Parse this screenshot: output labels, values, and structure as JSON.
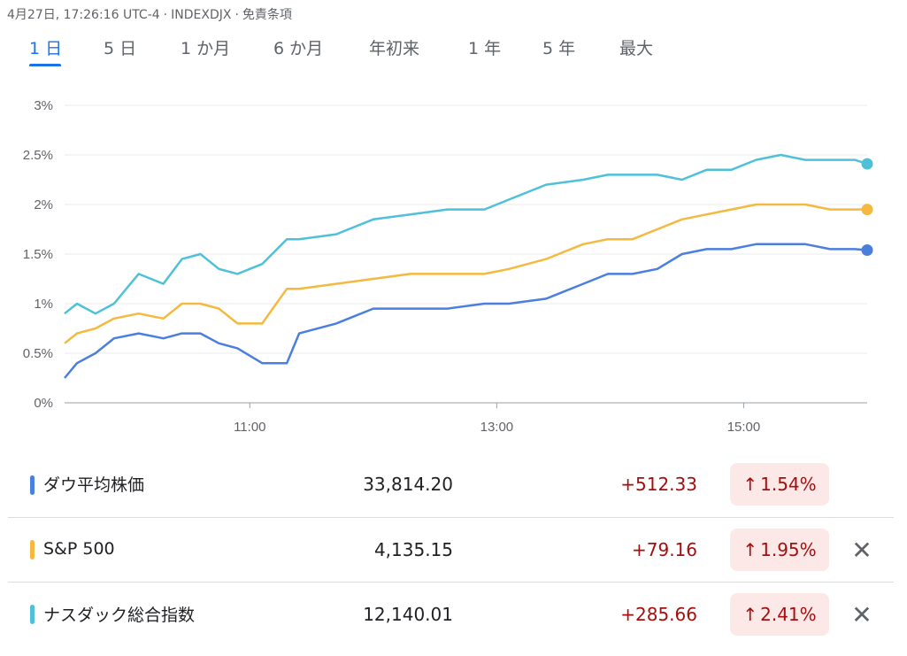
{
  "header": {
    "timestamp": "4月27日, 17:26:16 UTC-4",
    "separator": "·",
    "symbol": "INDEXDJX",
    "disclaimer": "免責条項"
  },
  "tabs": [
    {
      "label": "1 日",
      "active": true
    },
    {
      "label": "5 日",
      "active": false
    },
    {
      "label": "1 か月",
      "active": false
    },
    {
      "label": "6 か月",
      "active": false
    },
    {
      "label": "年初来",
      "active": false
    },
    {
      "label": "1 年",
      "active": false
    },
    {
      "label": "5 年",
      "active": false
    },
    {
      "label": "最大",
      "active": false
    }
  ],
  "chart_data": {
    "type": "line",
    "y_ticks": [
      "0%",
      "0.5%",
      "1%",
      "1.5%",
      "2%",
      "2.5%",
      "3%"
    ],
    "ylim": [
      0,
      3
    ],
    "x_ticks": [
      "11:00",
      "13:00",
      "15:00"
    ],
    "x_tick_hours": [
      11,
      13,
      15
    ],
    "xlim_hours": [
      9.5,
      16
    ],
    "grid": true,
    "series": [
      {
        "name": "ナスダック総合指数",
        "color": "#4ec1d9",
        "x": [
          9.5,
          9.6,
          9.75,
          9.9,
          10.1,
          10.3,
          10.45,
          10.6,
          10.75,
          10.9,
          11.1,
          11.3,
          11.4,
          11.7,
          12.0,
          12.3,
          12.6,
          12.9,
          13.1,
          13.4,
          13.7,
          13.9,
          14.1,
          14.3,
          14.5,
          14.7,
          14.9,
          15.1,
          15.3,
          15.5,
          15.7,
          15.9,
          16.0
        ],
        "y": [
          0.9,
          1.0,
          0.9,
          1.0,
          1.3,
          1.2,
          1.45,
          1.5,
          1.35,
          1.3,
          1.4,
          1.65,
          1.65,
          1.7,
          1.85,
          1.9,
          1.95,
          1.95,
          2.05,
          2.2,
          2.25,
          2.3,
          2.3,
          2.3,
          2.25,
          2.35,
          2.35,
          2.45,
          2.5,
          2.45,
          2.45,
          2.45,
          2.41
        ]
      },
      {
        "name": "S&P 500",
        "color": "#f4b93e",
        "x": [
          9.5,
          9.6,
          9.75,
          9.9,
          10.1,
          10.3,
          10.45,
          10.6,
          10.75,
          10.9,
          11.1,
          11.3,
          11.4,
          11.7,
          12.0,
          12.3,
          12.6,
          12.9,
          13.1,
          13.4,
          13.7,
          13.9,
          14.1,
          14.3,
          14.5,
          14.7,
          14.9,
          15.1,
          15.3,
          15.5,
          15.7,
          15.9,
          16.0
        ],
        "y": [
          0.6,
          0.7,
          0.75,
          0.85,
          0.9,
          0.85,
          1.0,
          1.0,
          0.95,
          0.8,
          0.8,
          1.15,
          1.15,
          1.2,
          1.25,
          1.3,
          1.3,
          1.3,
          1.35,
          1.45,
          1.6,
          1.65,
          1.65,
          1.75,
          1.85,
          1.9,
          1.95,
          2.0,
          2.0,
          2.0,
          1.95,
          1.95,
          1.95
        ]
      },
      {
        "name": "ダウ平均株価",
        "color": "#4a7fe0",
        "x": [
          9.5,
          9.6,
          9.75,
          9.9,
          10.1,
          10.3,
          10.45,
          10.6,
          10.75,
          10.9,
          11.1,
          11.3,
          11.4,
          11.7,
          12.0,
          12.3,
          12.6,
          12.9,
          13.1,
          13.4,
          13.7,
          13.9,
          14.1,
          14.3,
          14.5,
          14.7,
          14.9,
          15.1,
          15.3,
          15.5,
          15.7,
          15.9,
          16.0
        ],
        "y": [
          0.25,
          0.4,
          0.5,
          0.65,
          0.7,
          0.65,
          0.7,
          0.7,
          0.6,
          0.55,
          0.4,
          0.4,
          0.7,
          0.8,
          0.95,
          0.95,
          0.95,
          1.0,
          1.0,
          1.05,
          1.2,
          1.3,
          1.3,
          1.35,
          1.5,
          1.55,
          1.55,
          1.6,
          1.6,
          1.6,
          1.55,
          1.55,
          1.54
        ]
      }
    ]
  },
  "legend_rows": [
    {
      "name": "ダウ平均株価",
      "color": "#4a7fe0",
      "price": "33,814.20",
      "change": "+512.33",
      "arrow": "↑",
      "pct": "1.54%",
      "removable": false
    },
    {
      "name": "S&P 500",
      "color": "#f4b93e",
      "price": "4,135.15",
      "change": "+79.16",
      "arrow": "↑",
      "pct": "1.95%",
      "removable": true,
      "close": "✕"
    },
    {
      "name": "ナスダック総合指数",
      "color": "#4ec1d9",
      "price": "12,140.01",
      "change": "+285.66",
      "arrow": "↑",
      "pct": "2.41%",
      "removable": true,
      "close": "✕"
    }
  ]
}
